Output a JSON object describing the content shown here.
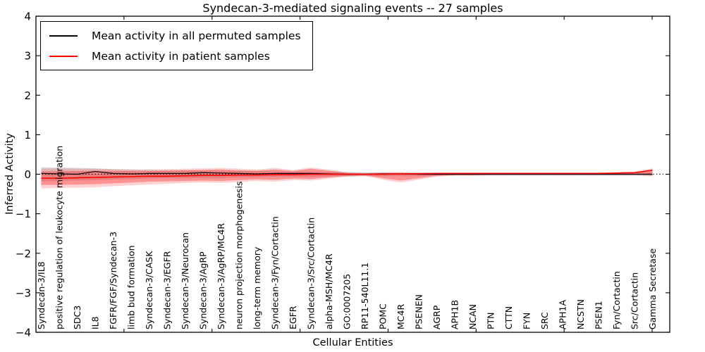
{
  "figure": {
    "title": "Syndecan-3-mediated signaling events -- 27 samples",
    "xlabel": "Cellular Entities",
    "ylabel": "Inferred Activity",
    "legend": [
      {
        "label": "Mean activity in all permuted samples",
        "color": "#000000"
      },
      {
        "label": "Mean activity in patient samples",
        "color": "#ff0000"
      }
    ]
  },
  "chart_data": {
    "type": "line",
    "title": "Syndecan-3-mediated signaling events -- 27 samples",
    "xlabel": "Cellular Entities",
    "ylabel": "Inferred Activity",
    "ylim": [
      -4,
      4
    ],
    "yticks": [
      -4,
      -3,
      -2,
      -1,
      0,
      1,
      2,
      3,
      4
    ],
    "grid": false,
    "legend_position": "upper left",
    "zero_line": {
      "y": 0,
      "style": "dotted",
      "color": "#000000"
    },
    "categories": [
      "Syndecan-3/IL8",
      "positive regulation of leukocyte migration",
      "SDC3",
      "IL8",
      "FGFR/FGF/Syndecan-3",
      "limb bud formation",
      "Syndecan-3/CASK",
      "Syndecan-3/EGFR",
      "Syndecan-3/Neurocan",
      "Syndecan-3/AgRP",
      "Syndecan-3/AgRP/MC4R",
      "neuron projection morphogenesis",
      "long-term memory",
      "Syndecan-3/Fyn/Cortactin",
      "EGFR",
      "Syndecan-3/Src/Cortactin",
      "alpha-MSH/MC4R",
      "GO:0007205",
      "RP11-540L11.1",
      "POMC",
      "MC4R",
      "PSENEN",
      "AGRP",
      "APH1B",
      "NCAN",
      "PTN",
      "CTTN",
      "FYN",
      "SRC",
      "APH1A",
      "NCSTN",
      "PSEN1",
      "Fyn/Cortactin",
      "Src/Cortactin",
      "Gamma Secretase"
    ],
    "series": [
      {
        "name": "Mean activity in all permuted samples",
        "color": "#000000",
        "values": [
          0.02,
          0.01,
          0.0,
          0.07,
          0.02,
          0.01,
          0.02,
          0.02,
          0.02,
          0.04,
          0.03,
          0.02,
          0.01,
          0.02,
          0.02,
          0.02,
          0.01,
          0.0,
          0.0,
          0.01,
          0.01,
          0.0,
          0.0,
          0.0,
          0.0,
          0.0,
          0.0,
          0.0,
          0.0,
          0.0,
          0.0,
          0.0,
          0.0,
          0.0,
          0.0
        ]
      },
      {
        "name": "Mean activity in patient samples",
        "color": "#ff0000",
        "values": [
          -0.1,
          -0.1,
          -0.09,
          -0.08,
          -0.07,
          -0.06,
          -0.05,
          -0.05,
          -0.04,
          -0.03,
          -0.03,
          -0.02,
          -0.02,
          -0.01,
          -0.01,
          0.0,
          0.0,
          0.0,
          0.0,
          0.0,
          0.01,
          0.01,
          0.02,
          0.02,
          0.02,
          0.02,
          0.02,
          0.02,
          0.02,
          0.02,
          0.02,
          0.02,
          0.03,
          0.04,
          0.1
        ]
      }
    ],
    "bands": [
      {
        "name": "permuted-std-band",
        "color": "#999999",
        "alpha": 0.35,
        "upper": [
          0.18,
          0.17,
          0.16,
          0.15,
          0.13,
          0.12,
          0.11,
          0.1,
          0.1,
          0.09,
          0.09,
          0.08,
          0.08,
          0.07,
          0.07,
          0.07,
          0.06,
          0.06,
          0.05,
          0.05,
          0.05,
          0.05,
          0.04,
          0.04,
          0.04,
          0.04,
          0.04,
          0.04,
          0.04,
          0.04,
          0.04,
          0.04,
          0.04,
          0.04,
          0.05
        ],
        "lower": [
          -0.18,
          -0.17,
          -0.16,
          -0.15,
          -0.13,
          -0.12,
          -0.11,
          -0.1,
          -0.1,
          -0.09,
          -0.09,
          -0.08,
          -0.08,
          -0.07,
          -0.07,
          -0.07,
          -0.06,
          -0.06,
          -0.05,
          -0.05,
          -0.05,
          -0.05,
          -0.04,
          -0.04,
          -0.04,
          -0.04,
          -0.04,
          -0.04,
          -0.04,
          -0.04,
          -0.04,
          -0.04,
          -0.04,
          -0.04,
          -0.05
        ]
      },
      {
        "name": "patient-std-outer-band",
        "color": "#ff0000",
        "alpha": 0.18,
        "upper": [
          0.14,
          0.15,
          0.14,
          0.14,
          0.13,
          0.12,
          0.12,
          0.13,
          0.14,
          0.15,
          0.16,
          0.14,
          0.12,
          0.16,
          0.11,
          0.17,
          0.12,
          0.05,
          0.03,
          0.05,
          0.05,
          0.04,
          0.04,
          0.04,
          0.04,
          0.04,
          0.04,
          0.04,
          0.04,
          0.04,
          0.04,
          0.04,
          0.05,
          0.07,
          0.15
        ],
        "lower": [
          -0.36,
          -0.35,
          -0.34,
          -0.33,
          -0.3,
          -0.28,
          -0.26,
          -0.24,
          -0.22,
          -0.21,
          -0.22,
          -0.2,
          -0.17,
          -0.19,
          -0.15,
          -0.16,
          -0.11,
          -0.06,
          -0.04,
          -0.14,
          -0.21,
          -0.14,
          -0.06,
          -0.03,
          -0.03,
          -0.02,
          -0.02,
          -0.02,
          -0.02,
          -0.02,
          -0.02,
          -0.02,
          -0.02,
          -0.02,
          -0.04
        ]
      },
      {
        "name": "patient-std-inner-band",
        "color": "#ff0000",
        "alpha": 0.3,
        "upper": [
          0.07,
          0.08,
          0.08,
          0.09,
          0.08,
          0.08,
          0.08,
          0.09,
          0.1,
          0.11,
          0.12,
          0.1,
          0.09,
          0.12,
          0.08,
          0.14,
          0.09,
          0.03,
          0.02,
          0.03,
          0.03,
          0.03,
          0.03,
          0.03,
          0.03,
          0.03,
          0.03,
          0.03,
          0.03,
          0.03,
          0.03,
          0.03,
          0.04,
          0.05,
          0.12
        ],
        "lower": [
          -0.27,
          -0.27,
          -0.26,
          -0.25,
          -0.23,
          -0.21,
          -0.19,
          -0.18,
          -0.17,
          -0.16,
          -0.17,
          -0.15,
          -0.13,
          -0.14,
          -0.11,
          -0.12,
          -0.08,
          -0.04,
          -0.03,
          -0.1,
          -0.16,
          -0.1,
          -0.04,
          -0.02,
          -0.02,
          -0.01,
          -0.01,
          -0.01,
          -0.01,
          -0.01,
          -0.01,
          -0.01,
          -0.01,
          -0.01,
          -0.02
        ]
      }
    ]
  }
}
